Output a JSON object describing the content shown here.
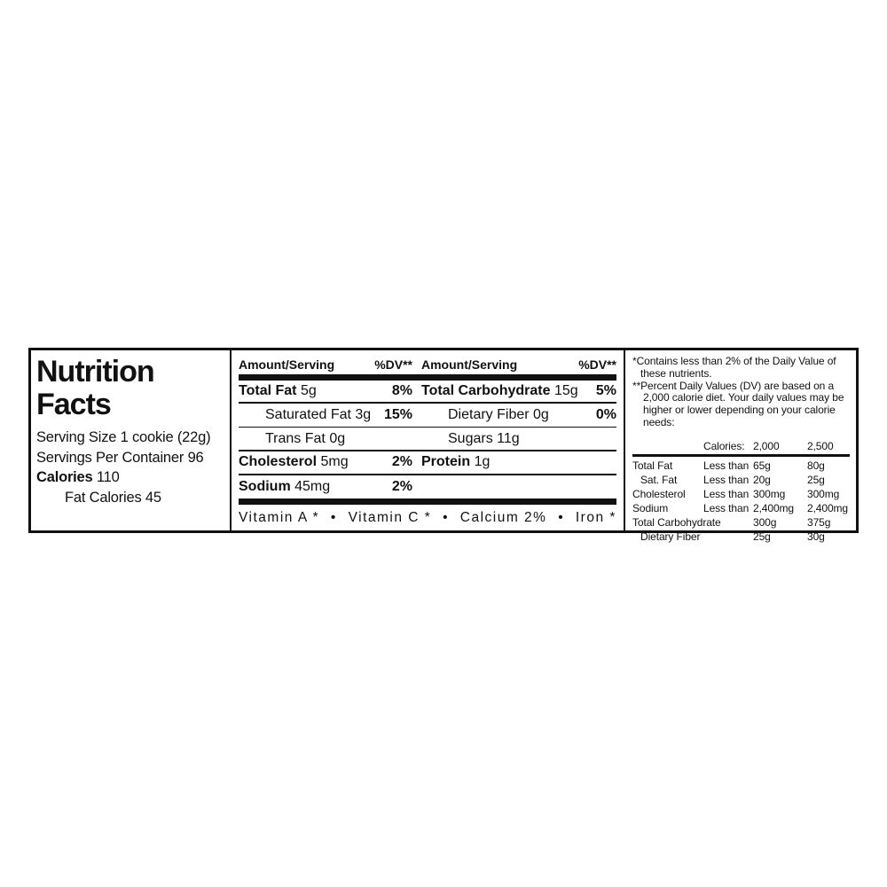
{
  "nutrition_label": {
    "title": {
      "line1": "Nutrition",
      "line2": "Facts"
    },
    "serving": {
      "serving_size": "Serving Size 1 cookie (22g)",
      "servings_per_container": "Servings Per Container 96",
      "calories_label": "Calories",
      "calories_value": "110",
      "fat_calories": "Fat Calories 45"
    },
    "panel": {
      "header_amount": "Amount/Serving",
      "header_dv": "%DV**",
      "rows": [
        {
          "l_name": "Total Fat",
          "l_amount": "5g",
          "l_dv": "8%",
          "r_name": "Total Carbohydrate",
          "r_amount": "15g",
          "r_dv": "5%"
        },
        {
          "l_name": "Saturated Fat",
          "l_amount": "3g",
          "l_dv": "15%",
          "r_name": "Dietary Fiber",
          "r_amount": "0g",
          "r_dv": "0%"
        },
        {
          "l_name": "Trans Fat",
          "l_amount": "0g",
          "l_dv": "",
          "r_name": "Sugars",
          "r_amount": "11g",
          "r_dv": ""
        },
        {
          "l_name": "Cholesterol",
          "l_amount": "5mg",
          "l_dv": "2%",
          "r_name": "Protein",
          "r_amount": "1g",
          "r_dv": ""
        },
        {
          "l_name": "Sodium",
          "l_amount": "45mg",
          "l_dv": "2%",
          "r_name": "",
          "r_amount": "",
          "r_dv": ""
        }
      ],
      "vitamins": [
        "Vitamin A *",
        "•",
        "Vitamin C *",
        "•",
        "Calcium 2%",
        "•",
        "Iron *"
      ]
    },
    "footnotes": {
      "note1": "*Contains less than 2% of the Daily Value of these nutrients.",
      "note2": "**Percent Daily Values (DV) are based on a 2,000 calorie diet. Your daily values may be higher or lower depending on your calorie needs:"
    },
    "dv_table": {
      "header": {
        "calories": "Calories:",
        "col2000": "2,000",
        "col2500": "2,500"
      },
      "rows": [
        {
          "name": "Total Fat",
          "qualifier": "Less than",
          "v2000": "65g",
          "v2500": "80g"
        },
        {
          "name": "Sat. Fat",
          "qualifier": "Less than",
          "v2000": "20g",
          "v2500": "25g"
        },
        {
          "name": "Cholesterol",
          "qualifier": "Less than",
          "v2000": "300mg",
          "v2500": "300mg"
        },
        {
          "name": "Sodium",
          "qualifier": "Less than",
          "v2000": "2,400mg",
          "v2500": "2,400mg"
        },
        {
          "name": "Total Carbohydrate",
          "qualifier": "",
          "v2000": "300g",
          "v2500": "375g"
        },
        {
          "name": "Dietary Fiber",
          "qualifier": "",
          "v2000": "25g",
          "v2500": "30g"
        }
      ]
    },
    "colors": {
      "ink": "#111111",
      "background": "#ffffff"
    }
  }
}
